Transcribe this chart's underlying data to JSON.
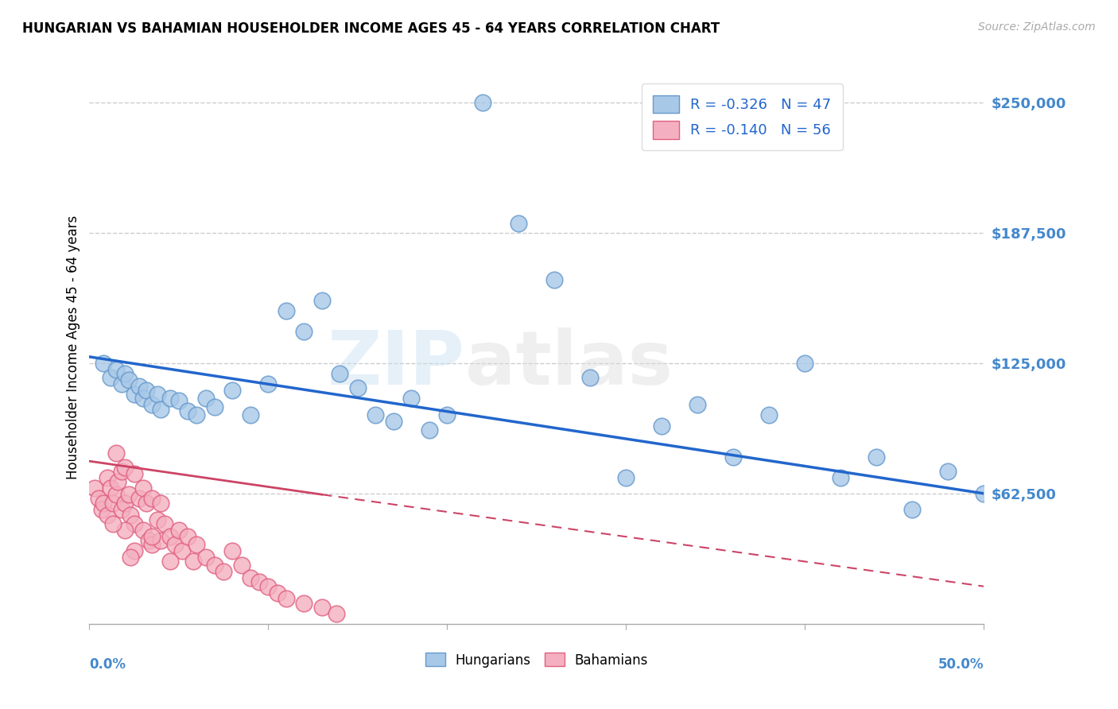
{
  "title": "HUNGARIAN VS BAHAMIAN HOUSEHOLDER INCOME AGES 45 - 64 YEARS CORRELATION CHART",
  "source": "Source: ZipAtlas.com",
  "ylabel": "Householder Income Ages 45 - 64 years",
  "yticks": [
    0,
    62500,
    125000,
    187500,
    250000
  ],
  "ytick_labels": [
    "",
    "$62,500",
    "$125,000",
    "$187,500",
    "$250,000"
  ],
  "xlim": [
    0.0,
    0.5
  ],
  "ylim": [
    0,
    265000
  ],
  "blue_color": "#a8c8e8",
  "blue_edge": "#6699cc",
  "pink_color": "#f4b0c0",
  "pink_edge": "#e06080",
  "trend_blue": "#2266cc",
  "trend_pink": "#cc4466",
  "background_color": "#ffffff",
  "hungarian_x": [
    0.008,
    0.012,
    0.015,
    0.018,
    0.02,
    0.022,
    0.025,
    0.028,
    0.03,
    0.032,
    0.035,
    0.038,
    0.04,
    0.045,
    0.05,
    0.055,
    0.06,
    0.065,
    0.07,
    0.08,
    0.09,
    0.1,
    0.11,
    0.12,
    0.13,
    0.14,
    0.15,
    0.16,
    0.17,
    0.18,
    0.2,
    0.22,
    0.24,
    0.26,
    0.3,
    0.32,
    0.34,
    0.36,
    0.38,
    0.4,
    0.42,
    0.44,
    0.46,
    0.48,
    0.5,
    0.28,
    0.19
  ],
  "hungarian_y": [
    125000,
    118000,
    122000,
    115000,
    120000,
    117000,
    110000,
    114000,
    108000,
    112000,
    105000,
    110000,
    103000,
    108000,
    107000,
    102000,
    100000,
    108000,
    104000,
    112000,
    100000,
    115000,
    150000,
    140000,
    155000,
    120000,
    113000,
    100000,
    97000,
    108000,
    100000,
    250000,
    192000,
    165000,
    70000,
    95000,
    105000,
    80000,
    100000,
    125000,
    70000,
    80000,
    55000,
    73000,
    62500,
    118000,
    93000
  ],
  "bahamian_x": [
    0.003,
    0.005,
    0.007,
    0.008,
    0.01,
    0.01,
    0.012,
    0.013,
    0.015,
    0.015,
    0.016,
    0.018,
    0.018,
    0.02,
    0.02,
    0.022,
    0.023,
    0.025,
    0.025,
    0.028,
    0.03,
    0.03,
    0.032,
    0.033,
    0.035,
    0.035,
    0.038,
    0.04,
    0.04,
    0.042,
    0.045,
    0.048,
    0.05,
    0.052,
    0.055,
    0.058,
    0.06,
    0.065,
    0.07,
    0.075,
    0.08,
    0.085,
    0.09,
    0.095,
    0.1,
    0.105,
    0.11,
    0.12,
    0.13,
    0.02,
    0.025,
    0.035,
    0.045,
    0.013,
    0.023,
    0.138
  ],
  "bahamian_y": [
    65000,
    60000,
    55000,
    58000,
    70000,
    52000,
    65000,
    58000,
    82000,
    62000,
    68000,
    73000,
    55000,
    75000,
    58000,
    62000,
    52000,
    72000,
    48000,
    60000,
    65000,
    45000,
    58000,
    40000,
    60000,
    38000,
    50000,
    58000,
    40000,
    48000,
    42000,
    38000,
    45000,
    35000,
    42000,
    30000,
    38000,
    32000,
    28000,
    25000,
    35000,
    28000,
    22000,
    20000,
    18000,
    15000,
    12000,
    10000,
    8000,
    45000,
    35000,
    42000,
    30000,
    48000,
    32000,
    5000
  ],
  "trend_blue_x0": 0.0,
  "trend_blue_y0": 128000,
  "trend_blue_x1": 0.5,
  "trend_blue_y1": 62500,
  "trend_pink_solid_x0": 0.0,
  "trend_pink_solid_y0": 78000,
  "trend_pink_solid_x1": 0.13,
  "trend_pink_solid_y1": 62000,
  "trend_pink_dash_x0": 0.13,
  "trend_pink_dash_y0": 62000,
  "trend_pink_dash_x1": 0.5,
  "trend_pink_dash_y1": 18000
}
